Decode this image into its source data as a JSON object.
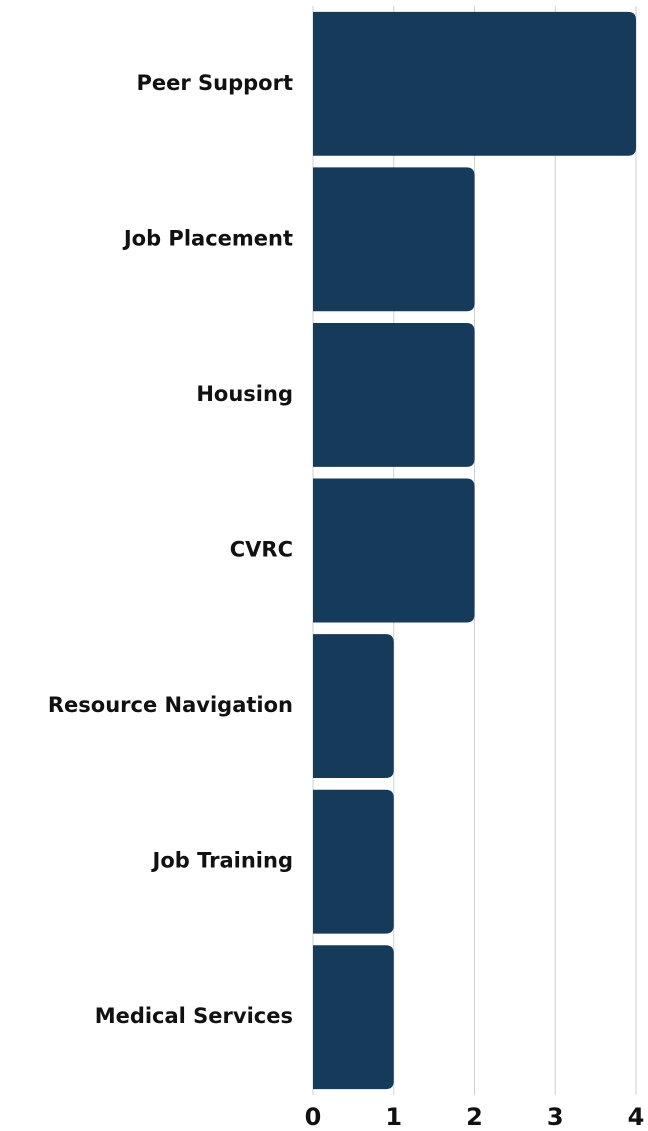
{
  "chart_data": {
    "type": "bar",
    "orientation": "horizontal",
    "categories": [
      "Peer Support",
      "Job Placement",
      "Housing",
      "CVRC",
      "Resource Navigation",
      "Job Training",
      "Medical Services"
    ],
    "values": [
      4,
      2,
      2,
      2,
      1,
      1,
      1
    ],
    "color": "#163a5a",
    "xlim": [
      0,
      4
    ],
    "xticks": [
      0,
      1,
      2,
      3,
      4
    ],
    "grid": true
  }
}
